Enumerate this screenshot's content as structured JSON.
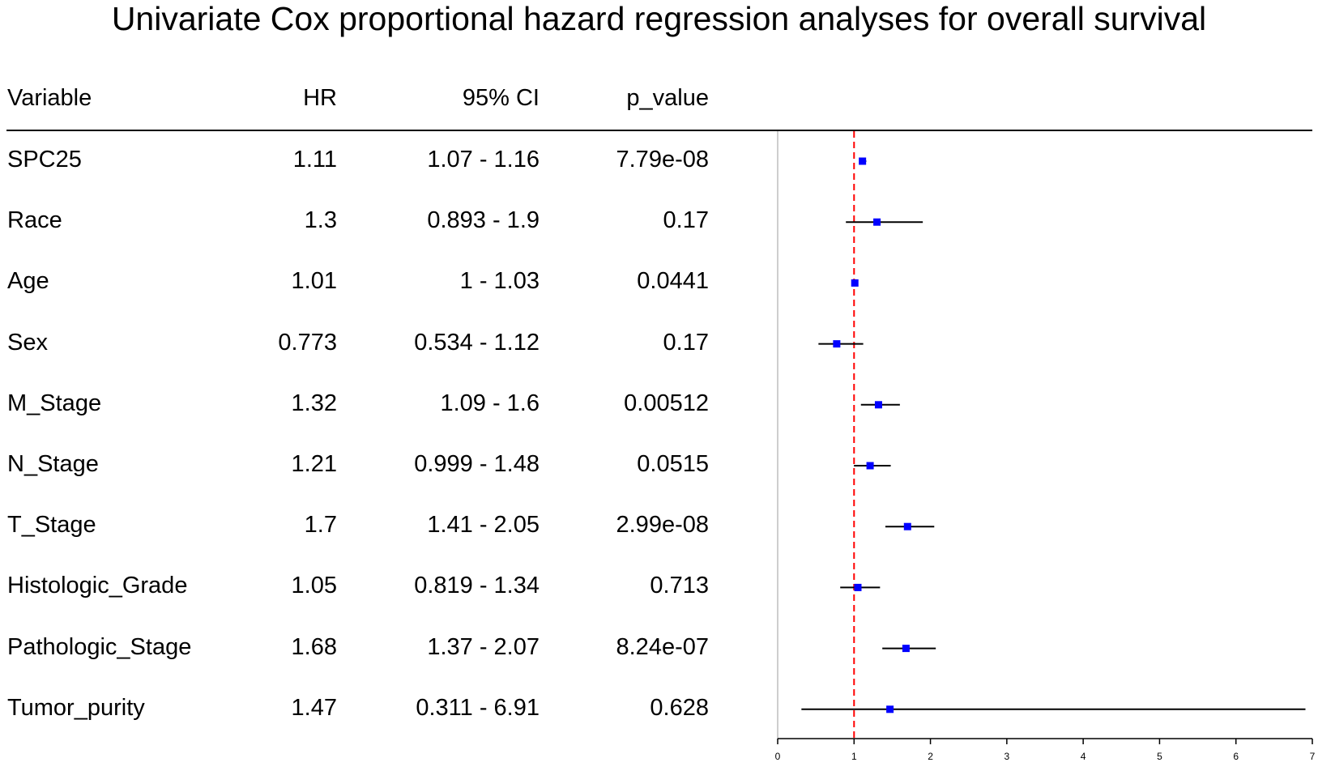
{
  "title": "Univariate Cox proportional hazard regression analyses for overall survival",
  "table": {
    "headers": {
      "variable": "Variable",
      "hr": "HR",
      "ci": "95% CI",
      "p_value": "p_value"
    },
    "rows": [
      {
        "variable": "SPC25",
        "hr": "1.11",
        "ci": "1.07 - 1.16",
        "p_value": "7.79e-08"
      },
      {
        "variable": "Race",
        "hr": "1.3",
        "ci": "0.893 - 1.9",
        "p_value": "0.17"
      },
      {
        "variable": "Age",
        "hr": "1.01",
        "ci": "1 - 1.03",
        "p_value": "0.0441"
      },
      {
        "variable": "Sex",
        "hr": "0.773",
        "ci": "0.534 - 1.12",
        "p_value": "0.17"
      },
      {
        "variable": "M_Stage",
        "hr": "1.32",
        "ci": "1.09 - 1.6",
        "p_value": "0.00512"
      },
      {
        "variable": "N_Stage",
        "hr": "1.21",
        "ci": "0.999 - 1.48",
        "p_value": "0.0515"
      },
      {
        "variable": "T_Stage",
        "hr": "1.7",
        "ci": "1.41 - 2.05",
        "p_value": "2.99e-08"
      },
      {
        "variable": "Histologic_Grade",
        "hr": "1.05",
        "ci": "0.819 - 1.34",
        "p_value": "0.713"
      },
      {
        "variable": "Pathologic_Stage",
        "hr": "1.68",
        "ci": "1.37 - 2.07",
        "p_value": "8.24e-07"
      },
      {
        "variable": "Tumor_purity",
        "hr": "1.47",
        "ci": "0.311 - 6.91",
        "p_value": "0.628"
      }
    ]
  },
  "chart_data": {
    "type": "forest",
    "title": "Univariate Cox proportional hazard regression analyses for overall survival",
    "categories": [
      "SPC25",
      "Race",
      "Age",
      "Sex",
      "M_Stage",
      "N_Stage",
      "T_Stage",
      "Histologic_Grade",
      "Pathologic_Stage",
      "Tumor_purity"
    ],
    "series": [
      {
        "hr": [
          1.11,
          1.3,
          1.01,
          0.773,
          1.32,
          1.21,
          1.7,
          1.05,
          1.68,
          1.47
        ],
        "lower": [
          1.07,
          0.893,
          1.0,
          0.534,
          1.09,
          0.999,
          1.41,
          0.819,
          1.37,
          0.311
        ],
        "upper": [
          1.16,
          1.9,
          1.03,
          1.12,
          1.6,
          1.48,
          2.05,
          1.34,
          2.07,
          6.91
        ]
      }
    ],
    "reference_line": 1,
    "xlim": [
      0,
      7
    ],
    "xticks": [
      0,
      1,
      2,
      3,
      4,
      5,
      6,
      7
    ],
    "log_scale": false,
    "grid": false,
    "colors": {
      "point": "#0000ff",
      "ci_line": "#000000",
      "reference_line": "#ff0000",
      "zero_line": "#bebebe"
    }
  }
}
